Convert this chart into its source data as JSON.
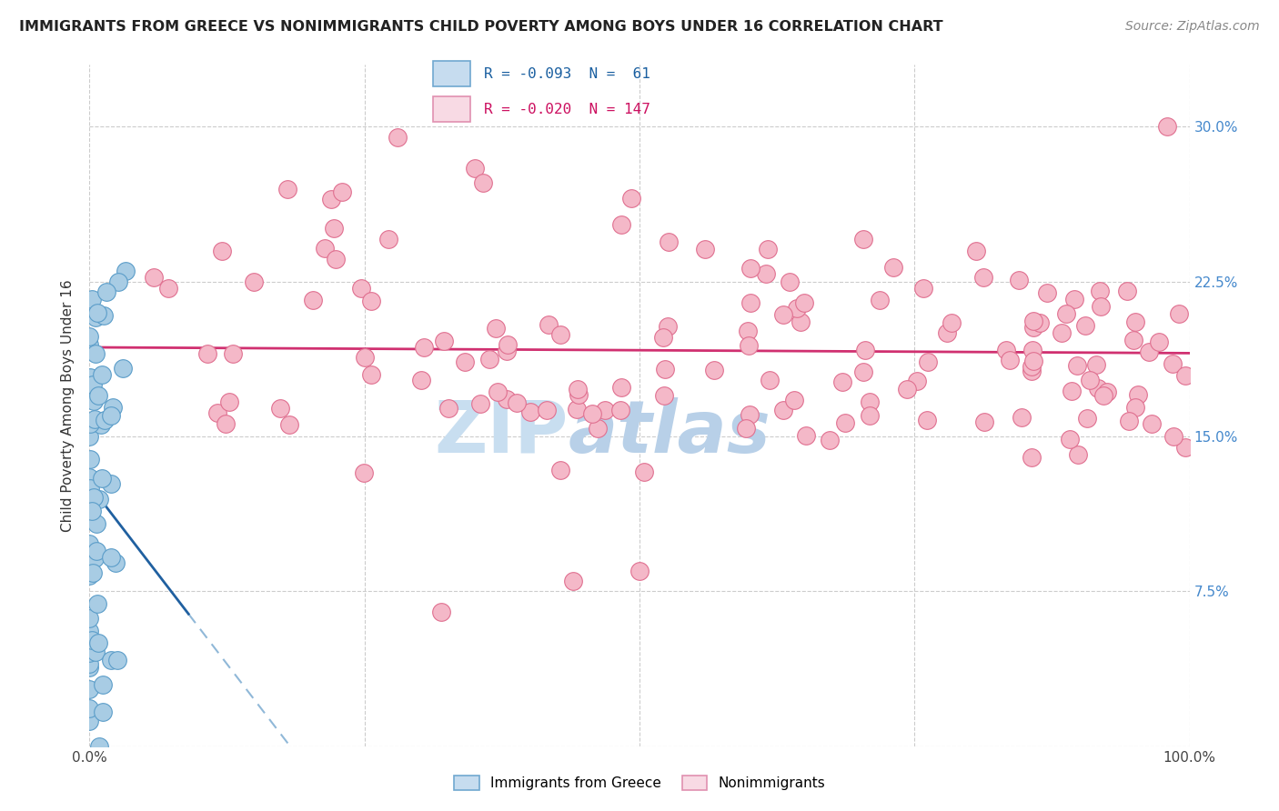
{
  "title": "IMMIGRANTS FROM GREECE VS NONIMMIGRANTS CHILD POVERTY AMONG BOYS UNDER 16 CORRELATION CHART",
  "source": "Source: ZipAtlas.com",
  "ylabel": "Child Poverty Among Boys Under 16",
  "xlim": [
    0.0,
    1.0
  ],
  "ylim": [
    0.0,
    0.33
  ],
  "ytick_vals": [
    0.0,
    0.075,
    0.15,
    0.225,
    0.3
  ],
  "ytick_labels_right": [
    "",
    "7.5%",
    "15.0%",
    "22.5%",
    "30.0%"
  ],
  "xtick_vals": [
    0.0,
    0.25,
    0.5,
    0.75,
    1.0
  ],
  "xtick_labels": [
    "0.0%",
    "",
    "",
    "",
    "100.0%"
  ],
  "legend_r1": "R = -0.093  N =  61",
  "legend_r2": "R = -0.020  N = 147",
  "blue_dot_face": "#a8cce4",
  "blue_dot_edge": "#5b9dc9",
  "pink_dot_face": "#f4b8c8",
  "pink_dot_edge": "#e07090",
  "trend_blue_color": "#2060a0",
  "trend_pink_color": "#d03070",
  "trend_blue_dash_color": "#90b8d8",
  "right_axis_color": "#4488cc",
  "watermark_zip_color": "#c8def0",
  "watermark_atlas_color": "#b8d0e8"
}
